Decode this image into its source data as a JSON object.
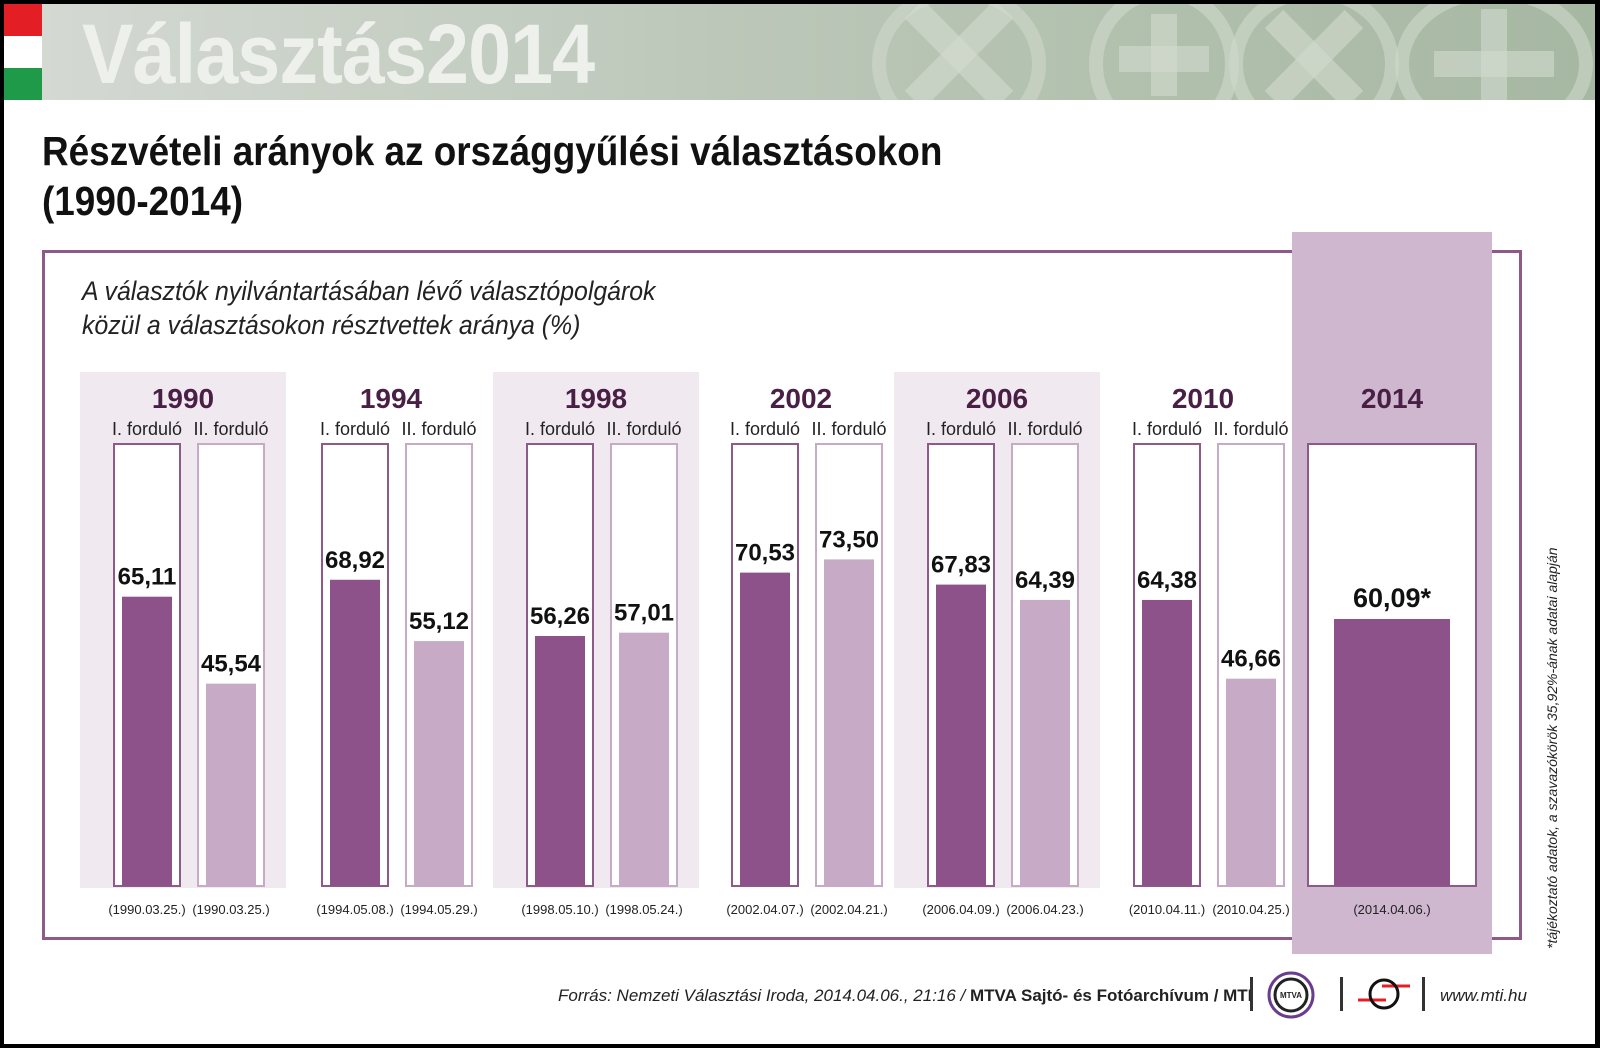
{
  "banner": {
    "title": "Választás2014",
    "flag_colors": [
      "#e31e24",
      "#ffffff",
      "#1f9a48"
    ]
  },
  "header": {
    "title_line1": "Részvételi arányok az országgyűlési választásokon",
    "title_line2": "(1990-2014)"
  },
  "subtitle": {
    "line1": "A választók nyilvántartásában lévő választópolgárok",
    "line2": "közül a választásokon résztvettek aránya (%)"
  },
  "footnote": "*tájékoztató adatok, a szavazókörök  35,92%-ának adatai alapján",
  "footer": {
    "source_italic": "Forrás: Nemzeti Választási Iroda, 2014.04.06., 21:16 / ",
    "source_bold": "MTVA Sajtó- és Fotóarchívum / MTI",
    "mtva_logo_text": "MTVA",
    "url": "www.mti.hu"
  },
  "colors": {
    "round1": "#8e528b",
    "round2": "#c7aac6",
    "frame": "#8d5a8a",
    "year_label": "#4a1f46",
    "shade_light": "#f1e9f0",
    "shade_2014": "#cfb7cf"
  },
  "chart_data": {
    "type": "bar",
    "title": "Részvételi arányok az országgyűlési választásokon (1990-2014)",
    "subtitle": "A választók nyilvántartásában lévő választópolgárok közül a választásokon résztvettek aránya (%)",
    "ylabel": "%",
    "ylim": [
      0,
      100
    ],
    "grid": false,
    "groups": [
      {
        "year": "1990",
        "shaded": true,
        "bars": [
          {
            "round": "I. forduló",
            "value": 65.11,
            "label": "65,11",
            "date": "(1990.03.25.)"
          },
          {
            "round": "II. forduló",
            "value": 45.54,
            "label": "45,54",
            "date": "(1990.03.25.)"
          }
        ]
      },
      {
        "year": "1994",
        "shaded": false,
        "bars": [
          {
            "round": "I. forduló",
            "value": 68.92,
            "label": "68,92",
            "date": "(1994.05.08.)"
          },
          {
            "round": "II. forduló",
            "value": 55.12,
            "label": "55,12",
            "date": "(1994.05.29.)"
          }
        ]
      },
      {
        "year": "1998",
        "shaded": true,
        "bars": [
          {
            "round": "I. forduló",
            "value": 56.26,
            "label": "56,26",
            "date": "(1998.05.10.)"
          },
          {
            "round": "II. forduló",
            "value": 57.01,
            "label": "57,01",
            "date": "(1998.05.24.)"
          }
        ]
      },
      {
        "year": "2002",
        "shaded": false,
        "bars": [
          {
            "round": "I. forduló",
            "value": 70.53,
            "label": "70,53",
            "date": "(2002.04.07.)"
          },
          {
            "round": "II. forduló",
            "value": 73.5,
            "label": "73,50",
            "date": "(2002.04.21.)"
          }
        ]
      },
      {
        "year": "2006",
        "shaded": true,
        "bars": [
          {
            "round": "I. forduló",
            "value": 67.83,
            "label": "67,83",
            "date": "(2006.04.09.)"
          },
          {
            "round": "II. forduló",
            "value": 64.39,
            "label": "64,39",
            "date": "(2006.04.23.)"
          }
        ]
      },
      {
        "year": "2010",
        "shaded": false,
        "bars": [
          {
            "round": "I. forduló",
            "value": 64.38,
            "label": "64,38",
            "date": "(2010.04.11.)"
          },
          {
            "round": "II. forduló",
            "value": 46.66,
            "label": "46,66",
            "date": "(2010.04.25.)"
          }
        ]
      },
      {
        "year": "2014",
        "shaded": true,
        "highlight": true,
        "bars": [
          {
            "round": "",
            "value": 60.09,
            "label": "60,09*",
            "date": "(2014.04.06.)"
          }
        ]
      }
    ]
  }
}
